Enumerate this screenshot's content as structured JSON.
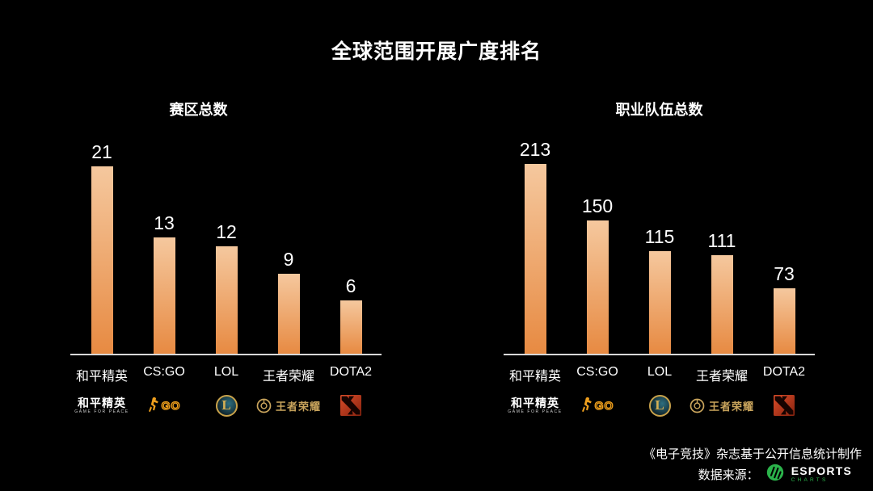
{
  "page_title": "全球范围开展广度排名",
  "chart_data": [
    {
      "type": "bar",
      "title": "赛区总数",
      "categories": [
        "和平精英",
        "CS:GO",
        "LOL",
        "王者荣耀",
        "DOTA2"
      ],
      "values": [
        21,
        13,
        12,
        9,
        6
      ],
      "xlabel": "",
      "ylabel": "",
      "ylim": [
        0,
        22
      ],
      "grid": false,
      "legend": false,
      "value_labels_shown": true
    },
    {
      "type": "bar",
      "title": "职业队伍总数",
      "categories": [
        "和平精英",
        "CS:GO",
        "LOL",
        "王者荣耀",
        "DOTA2"
      ],
      "values": [
        213,
        150,
        115,
        111,
        73
      ],
      "xlabel": "",
      "ylabel": "",
      "ylim": [
        0,
        220
      ],
      "grid": false,
      "legend": false,
      "value_labels_shown": true
    }
  ],
  "game_logos": [
    {
      "icon": "game-for-peace-logo",
      "title": "和平精英",
      "subtitle": "GAME FOR PEACE"
    },
    {
      "icon": "csgo-logo",
      "label": "GO"
    },
    {
      "icon": "lol-logo",
      "label": "L"
    },
    {
      "icon": "honor-of-kings-logo",
      "label": "王者荣耀"
    },
    {
      "icon": "dota2-logo"
    }
  ],
  "footer": {
    "credit": "《电子竞技》杂志基于公开信息统计制作",
    "source_label": "数据来源：",
    "source_brand_line1": "ESPORTS",
    "source_brand_line2": "CHARTS"
  },
  "colors": {
    "background": "#000000",
    "bar_top": "#f5c89e",
    "bar_bottom": "#e78a42",
    "axis": "#d8d8d8",
    "gold": "#c9a45c",
    "csgo_orange": "#ef9f1d",
    "dota_red": "#c43a1b",
    "esports_green": "#2bb34b"
  }
}
